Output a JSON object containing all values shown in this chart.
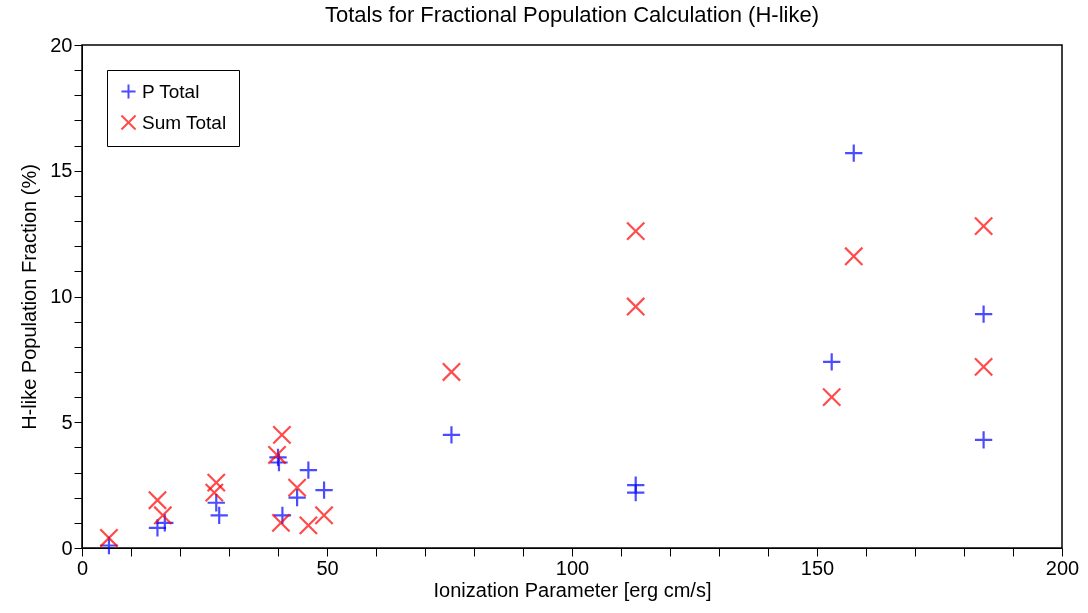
{
  "chart_data": {
    "type": "scatter",
    "title": "Totals for Fractional Population Calculation (H-like)",
    "xlabel": "Ionization Parameter [erg cm/s]",
    "ylabel": "H-like Population Fraction (%)",
    "xlim": [
      0,
      200
    ],
    "ylim": [
      0,
      20
    ],
    "xticks": [
      0,
      {
        "value": 10,
        "label": null
      },
      {
        "value": 20,
        "label": null
      },
      {
        "value": 30,
        "label": null
      },
      {
        "value": 40,
        "label": null
      },
      50,
      {
        "value": 60,
        "label": null
      },
      {
        "value": 70,
        "label": null
      },
      {
        "value": 80,
        "label": null
      },
      {
        "value": 90,
        "label": null
      },
      100,
      {
        "value": 110,
        "label": null
      },
      {
        "value": 120,
        "label": null
      },
      {
        "value": 130,
        "label": null
      },
      {
        "value": 140,
        "label": null
      },
      150,
      {
        "value": 160,
        "label": null
      },
      {
        "value": 170,
        "label": null
      },
      {
        "value": 180,
        "label": null
      },
      {
        "value": 190,
        "label": null
      },
      200
    ],
    "yticks": [
      0,
      {
        "value": 1,
        "label": null
      },
      {
        "value": 2,
        "label": null
      },
      {
        "value": 3,
        "label": null
      },
      {
        "value": 4,
        "label": null
      },
      5,
      {
        "value": 6,
        "label": null
      },
      {
        "value": 7,
        "label": null
      },
      {
        "value": 8,
        "label": null
      },
      {
        "value": 9,
        "label": null
      },
      10,
      {
        "value": 11,
        "label": null
      },
      {
        "value": 12,
        "label": null
      },
      {
        "value": 13,
        "label": null
      },
      {
        "value": 14,
        "label": null
      },
      15,
      {
        "value": 16,
        "label": null
      },
      {
        "value": 17,
        "label": null
      },
      {
        "value": 18,
        "label": null
      },
      {
        "value": 19,
        "label": null
      },
      20
    ],
    "grid": false,
    "legend": "top left",
    "series": [
      {
        "name": "P Total",
        "color": "#0000ff",
        "marker": "cross",
        "x": [
          5.5,
          15.4,
          16.9,
          27.4,
          28,
          40.2,
          40,
          40.9,
          46.2,
          43.9,
          49.4,
          75.4,
          113,
          113,
          157.5,
          153,
          184,
          184
        ],
        "values": [
          0.1,
          0.8,
          1.0,
          1.8,
          1.3,
          3.4,
          3.6,
          1.3,
          3.1,
          2.0,
          2.3,
          4.5,
          2.5,
          2.2,
          15.7,
          7.4,
          9.3,
          4.3
        ]
      },
      {
        "name": "Sum Total",
        "color": "#ff0000",
        "marker": "x",
        "x": [
          5.5,
          15.4,
          16.5,
          27.4,
          27,
          40.8,
          39.8,
          40.6,
          43.9,
          46.2,
          49.4,
          75.4,
          113,
          113,
          157.5,
          153,
          184,
          184
        ],
        "values": [
          0.4,
          1.9,
          1.3,
          2.6,
          2.2,
          4.5,
          3.7,
          1.0,
          2.4,
          0.9,
          1.3,
          7.0,
          12.6,
          9.6,
          11.6,
          6.0,
          12.8,
          7.2
        ]
      }
    ]
  }
}
